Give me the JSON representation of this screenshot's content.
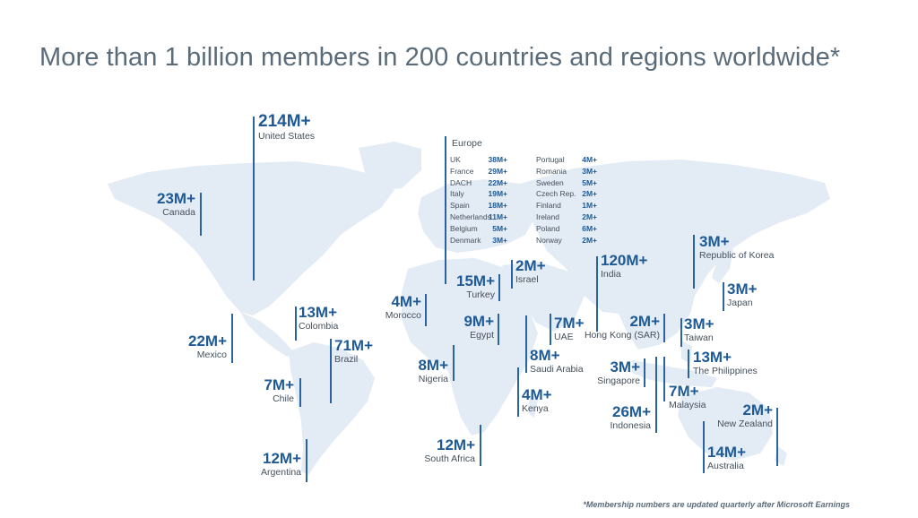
{
  "title": "More than 1 billion members in 200 countries and regions worldwide*",
  "footnote": "*Membership numbers are updated quarterly after Microsoft Earnings",
  "colors": {
    "number": "#1d5a96",
    "name": "#44505c",
    "land": "#e3ebf5",
    "tick": "#2a63a1"
  },
  "countries": {
    "united_states": {
      "value": "214M+",
      "name": "United States"
    },
    "canada": {
      "value": "23M+",
      "name": "Canada"
    },
    "mexico": {
      "value": "22M+",
      "name": "Mexico"
    },
    "colombia": {
      "value": "13M+",
      "name": "Colombia"
    },
    "brazil": {
      "value": "71M+",
      "name": "Brazil"
    },
    "chile": {
      "value": "7M+",
      "name": "Chile"
    },
    "argentina": {
      "value": "12M+",
      "name": "Argentina"
    },
    "morocco": {
      "value": "4M+",
      "name": "Morocco"
    },
    "turkey": {
      "value": "15M+",
      "name": "Turkey"
    },
    "israel": {
      "value": "2M+",
      "name": "Israel"
    },
    "egypt": {
      "value": "9M+",
      "name": "Egypt"
    },
    "uae": {
      "value": "7M+",
      "name": "UAE"
    },
    "saudi_arabia": {
      "value": "8M+",
      "name": "Saudi Arabia"
    },
    "nigeria": {
      "value": "8M+",
      "name": "Nigeria"
    },
    "kenya": {
      "value": "4M+",
      "name": "Kenya"
    },
    "south_africa": {
      "value": "12M+",
      "name": "South Africa"
    },
    "india": {
      "value": "120M+",
      "name": "India"
    },
    "hong_kong": {
      "value": "2M+",
      "name": "Hong Kong (SAR)"
    },
    "singapore": {
      "value": "3M+",
      "name": "Singapore"
    },
    "indonesia": {
      "value": "26M+",
      "name": "Indonesia"
    },
    "malaysia": {
      "value": "7M+",
      "name": "Malaysia"
    },
    "korea": {
      "value": "3M+",
      "name": "Republic of Korea"
    },
    "japan": {
      "value": "3M+",
      "name": "Japan"
    },
    "taiwan": {
      "value": "3M+",
      "name": "Taiwan"
    },
    "philippines": {
      "value": "13M+",
      "name": "The Philippines"
    },
    "new_zealand": {
      "value": "2M+",
      "name": "New Zealand"
    },
    "australia": {
      "value": "14M+",
      "name": "Australia"
    }
  },
  "europe": {
    "title": "Europe",
    "left": [
      {
        "name": "UK",
        "value": "38M+"
      },
      {
        "name": "France",
        "value": "29M+"
      },
      {
        "name": "DACH",
        "value": "22M+"
      },
      {
        "name": "Italy",
        "value": "19M+"
      },
      {
        "name": "Spain",
        "value": "18M+"
      },
      {
        "name": "Netherlands",
        "value": "11M+"
      },
      {
        "name": "Belgium",
        "value": "5M+"
      },
      {
        "name": "Denmark",
        "value": "3M+"
      }
    ],
    "right": [
      {
        "name": "Portugal",
        "value": "4M+"
      },
      {
        "name": "Romania",
        "value": "3M+"
      },
      {
        "name": "Sweden",
        "value": "5M+"
      },
      {
        "name": "Czech Rep.",
        "value": "2M+"
      },
      {
        "name": "Finland",
        "value": "1M+"
      },
      {
        "name": "Ireland",
        "value": "2M+"
      },
      {
        "name": "Poland",
        "value": "6M+"
      },
      {
        "name": "Norway",
        "value": "2M+"
      }
    ]
  }
}
